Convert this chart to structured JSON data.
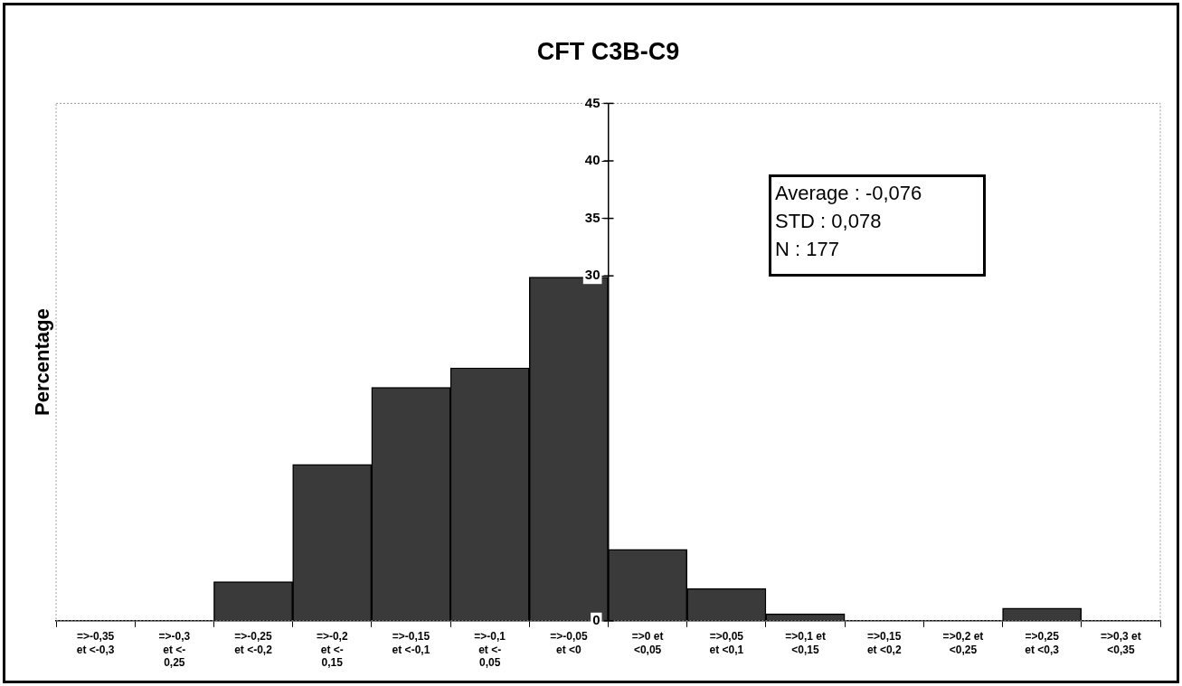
{
  "chart_data": {
    "type": "bar",
    "title": "CFT C3B-C9",
    "ylabel": "Percentage",
    "categories": [
      "=>-0,35 et <-0,3",
      "=>-0,3 et <-0,25",
      "=>-0,25 et <-0,2",
      "=>-0,2 et <-0,15",
      "=>-0,15 et <-0,1",
      "=>-0,1 et <-0,05",
      "=>-0,05 et <0",
      "=>0 et <0,05",
      "=>0,05 et <0,1",
      "=>0,1 et <0,15",
      "=>0,15 et <0,2",
      "=>0,2 et <0,25",
      "=>0,25 et <0,3",
      "=>0,3 et <0,35"
    ],
    "values": [
      0,
      0,
      3.4,
      13.6,
      20.3,
      22,
      29.9,
      6.2,
      2.8,
      0.6,
      0,
      0,
      1.1,
      0
    ],
    "color": "#3a3a3a",
    "ylim": [
      0,
      45
    ],
    "yticks": [
      0,
      30,
      35,
      40,
      45
    ],
    "grid": false,
    "legend": false,
    "annotations": [
      "Average : -0,076",
      "STD : 0,078",
      "N : 177"
    ]
  }
}
